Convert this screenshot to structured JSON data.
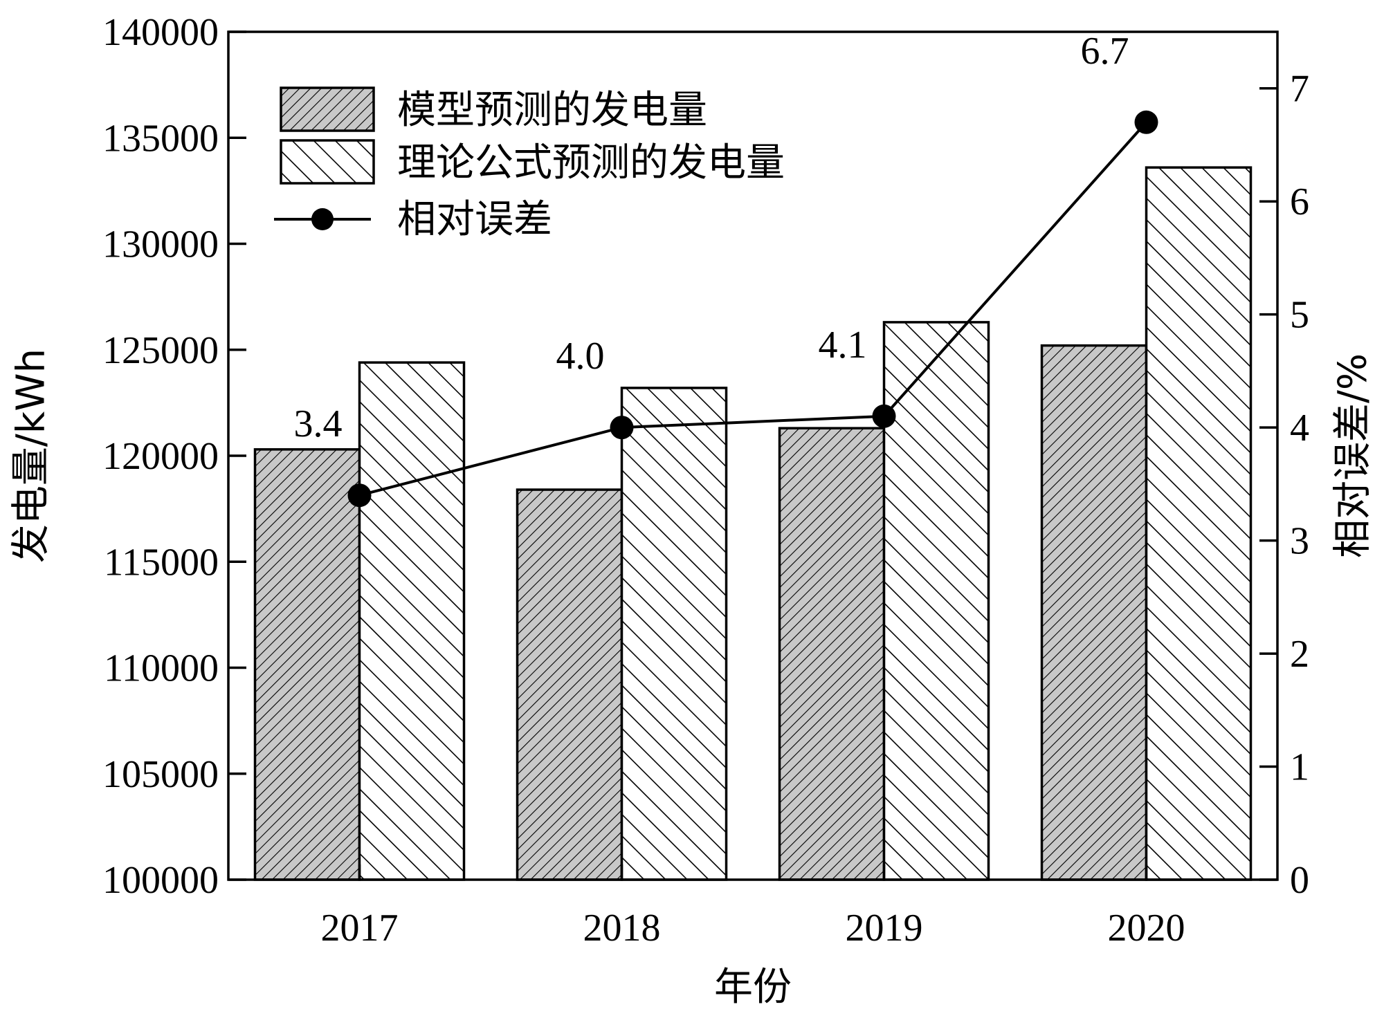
{
  "chart_data": {
    "type": "bar",
    "categories": [
      "2017",
      "2018",
      "2019",
      "2020"
    ],
    "series": [
      {
        "name": "模型预测的发电量",
        "kind": "bar",
        "pattern": "dense-hatch-gray",
        "axis": "left",
        "values": [
          120300,
          118400,
          121300,
          125200
        ]
      },
      {
        "name": "理论公式预测的发电量",
        "kind": "bar",
        "pattern": "wide-hatch-white",
        "axis": "left",
        "values": [
          124400,
          123200,
          126300,
          133600
        ]
      },
      {
        "name": "相对误差",
        "kind": "line",
        "marker": "circle",
        "axis": "right",
        "values": [
          3.4,
          4.0,
          4.1,
          6.7
        ]
      }
    ],
    "data_labels": [
      "3.4",
      "4.0",
      "4.1",
      "6.7"
    ],
    "xlabel": "年份",
    "ylabel": "发电量/kWh",
    "y2label": "相对误差/%",
    "ylim": [
      100000,
      140000
    ],
    "yticks": [
      "100000",
      "105000",
      "110000",
      "115000",
      "120000",
      "125000",
      "130000",
      "135000",
      "140000"
    ],
    "y2lim": [
      0,
      7.5
    ],
    "y2ticks": [
      "0",
      "1",
      "2",
      "3",
      "4",
      "5",
      "6",
      "7"
    ],
    "legend_position": "top-left",
    "grid": false,
    "colors": {
      "bar1_fill": "#c8c8c8",
      "bar2_fill": "#ffffff",
      "line": "#000000"
    }
  }
}
